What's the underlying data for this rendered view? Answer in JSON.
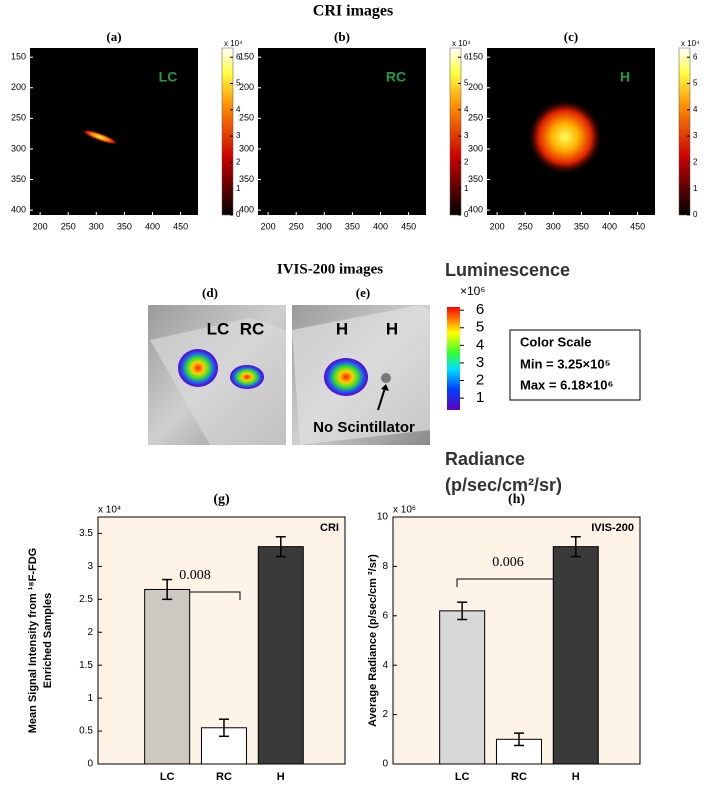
{
  "title": "CRI images",
  "cri_panels": [
    {
      "label": "(a)",
      "tag": "LC",
      "xlim": [
        182,
        481
      ],
      "ylim": [
        135,
        408
      ],
      "xticks": [
        200,
        250,
        300,
        350,
        400,
        450
      ],
      "yticks": [
        150,
        200,
        250,
        300,
        350,
        400
      ],
      "clim": [
        0,
        6.35
      ],
      "cticks": [
        0,
        1,
        2,
        3,
        4,
        5,
        6
      ],
      "cexp": "x 10⁴"
    },
    {
      "label": "(b)",
      "tag": "RC",
      "xlim": [
        182,
        481
      ],
      "ylim": [
        135,
        408
      ],
      "xticks": [
        200,
        250,
        300,
        350,
        400,
        450
      ],
      "yticks": [
        150,
        200,
        250,
        300,
        350,
        400
      ],
      "clim": [
        0,
        6.35
      ],
      "cticks": [
        0,
        1,
        2,
        3,
        4,
        5,
        6
      ],
      "cexp": "x 10⁴"
    },
    {
      "label": "(c)",
      "tag": "H",
      "xlim": [
        182,
        481
      ],
      "ylim": [
        135,
        408
      ],
      "xticks": [
        200,
        250,
        300,
        350,
        400,
        450
      ],
      "yticks": [
        150,
        200,
        250,
        300,
        350,
        400
      ],
      "clim": [
        0,
        6.35
      ],
      "cticks": [
        0,
        1,
        2,
        3,
        4,
        5,
        6
      ],
      "cexp": "x 10⁴"
    }
  ],
  "ivis": {
    "title": "IVIS-200  images",
    "panels": [
      {
        "label": "(d)",
        "tags": [
          "LC",
          "RC"
        ]
      },
      {
        "label": "(e)",
        "tags": [
          "H",
          "H"
        ],
        "note": "No Scintillator"
      }
    ],
    "colorbar": {
      "title": "Luminescence",
      "exponent": "×10⁶",
      "clim": [
        0.325,
        6.18
      ],
      "ticks": [
        1,
        2,
        3,
        4,
        5,
        6
      ],
      "unit_title": "Radiance",
      "unit": "(p/sec/cm²/sr)"
    },
    "scale_box": {
      "title": "Color Scale",
      "min": "Min = 3.25×10⁵",
      "max": "Max = 6.18×10⁶"
    }
  },
  "chart_data": [
    {
      "type": "bar",
      "title": "(g)",
      "corner_label": "CRI",
      "exponent": "x 10⁴",
      "ylabel": [
        "Mean Signal Intensity from ¹⁸F-FDG",
        "Enriched Samples"
      ],
      "categories": [
        "LC",
        "RC",
        "H"
      ],
      "values": [
        2.65,
        0.55,
        3.3
      ],
      "errors": [
        0.15,
        0.13,
        0.15
      ],
      "colors": [
        "#cdc9c0",
        "#ffffff",
        "#3a3a3a"
      ],
      "ylim": [
        0,
        3.75
      ],
      "yticks": [
        0,
        0.5,
        1,
        1.5,
        2,
        2.5,
        3,
        3.5
      ],
      "annotation": "0.008"
    },
    {
      "type": "bar",
      "title": "(h)",
      "corner_label": "IVIS-200",
      "exponent": "x 10⁶",
      "ylabel": [
        "Average Radiance (p/sec/cm ²/sr)"
      ],
      "categories": [
        "LC",
        "RC",
        "H"
      ],
      "values": [
        6.2,
        1.0,
        8.8
      ],
      "errors": [
        0.35,
        0.25,
        0.4
      ],
      "colors": [
        "#d8d8d8",
        "#ffffff",
        "#3a3a3a"
      ],
      "ylim": [
        0,
        10
      ],
      "yticks": [
        0,
        2,
        4,
        6,
        8,
        10
      ],
      "annotation": "0.006"
    }
  ]
}
